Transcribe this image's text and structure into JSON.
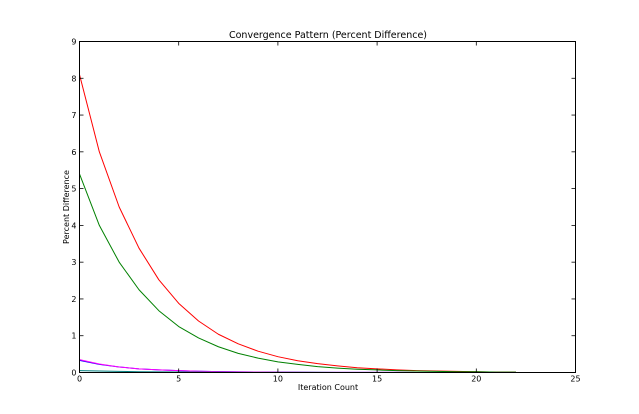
{
  "chart_data": {
    "type": "line",
    "title": "Convergence Pattern (Percent Difference)",
    "xlabel": "Iteration Count",
    "ylabel": "Percent Difference",
    "xlim": [
      0,
      25
    ],
    "ylim": [
      0,
      9
    ],
    "xticks": [
      0,
      5,
      10,
      15,
      20,
      25
    ],
    "yticks": [
      0,
      1,
      2,
      3,
      4,
      5,
      6,
      7,
      8,
      9
    ],
    "grid": false,
    "legend": "none",
    "series": [
      {
        "color": "#ff0000",
        "x": [
          0,
          1,
          2,
          3,
          4,
          5,
          6,
          7,
          8,
          9,
          10,
          11,
          12,
          13,
          14,
          15,
          16,
          17,
          18,
          19,
          20,
          21,
          22
        ],
        "values": [
          8.1,
          6.0,
          4.5,
          3.38,
          2.52,
          1.88,
          1.4,
          1.04,
          0.78,
          0.58,
          0.43,
          0.32,
          0.24,
          0.18,
          0.13,
          0.1,
          0.07,
          0.05,
          0.04,
          0.03,
          0.02,
          0.01,
          0.01
        ]
      },
      {
        "color": "#008000",
        "x": [
          0,
          1,
          2,
          3,
          4,
          5,
          6,
          7,
          8,
          9,
          10,
          11,
          12,
          13,
          14,
          15,
          16,
          17,
          18,
          19,
          20,
          21,
          22
        ],
        "values": [
          5.4,
          4.0,
          3.0,
          2.25,
          1.68,
          1.25,
          0.94,
          0.7,
          0.52,
          0.39,
          0.29,
          0.22,
          0.16,
          0.12,
          0.09,
          0.07,
          0.05,
          0.04,
          0.03,
          0.02,
          0.02,
          0.01,
          0.01
        ]
      },
      {
        "color": "#0000ff",
        "x": [
          0,
          1,
          2,
          3,
          4,
          5,
          6,
          7,
          8,
          9,
          10,
          11,
          12,
          13,
          14,
          15,
          16,
          17,
          18,
          19,
          20,
          21,
          22
        ],
        "values": [
          0.33,
          0.22,
          0.15,
          0.1,
          0.07,
          0.05,
          0.035,
          0.025,
          0.018,
          0.013,
          0.01,
          0.007,
          0.005,
          0.004,
          0.003,
          0.002,
          0.002,
          0.001,
          0.001,
          0.001,
          0.0,
          0.0,
          0.0
        ]
      },
      {
        "color": "#ff00ff",
        "x": [
          0,
          1,
          2,
          3,
          4,
          5,
          6,
          7,
          8,
          9,
          10,
          11,
          12,
          13,
          14,
          15,
          16,
          17,
          18,
          19,
          20,
          21,
          22
        ],
        "values": [
          0.35,
          0.23,
          0.15,
          0.1,
          0.07,
          0.05,
          0.035,
          0.025,
          0.018,
          0.013,
          0.01,
          0.007,
          0.005,
          0.004,
          0.003,
          0.002,
          0.002,
          0.001,
          0.001,
          0.001,
          0.0,
          0.0,
          0.0
        ]
      },
      {
        "color": "#008080",
        "x": [
          0,
          1,
          2,
          3,
          4,
          5,
          6,
          7,
          8,
          9,
          10,
          11,
          12,
          13,
          14,
          15,
          16,
          17,
          18,
          19,
          20,
          21,
          22
        ],
        "values": [
          0.05,
          0.04,
          0.03,
          0.022,
          0.016,
          0.012,
          0.009,
          0.007,
          0.005,
          0.004,
          0.003,
          0.002,
          0.002,
          0.001,
          0.001,
          0.001,
          0.0,
          0.0,
          0.0,
          0.0,
          0.0,
          0.0,
          0.0
        ]
      }
    ]
  }
}
